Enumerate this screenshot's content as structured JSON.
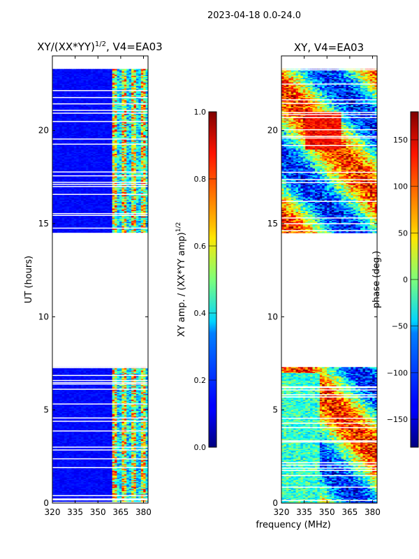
{
  "figure_title": "2023-04-18 0.0-24.0",
  "shared_xlabel": "frequency (MHz)",
  "chart_data": [
    {
      "type": "heatmap",
      "title_main": "XY/(XX*YY)",
      "title_sup": "1/2",
      "title_tail": ", V4=EA03",
      "xlabel": "",
      "ylabel": "UT (hours)",
      "xlim": [
        320,
        383
      ],
      "ylim": [
        0,
        24
      ],
      "xticks": [
        320,
        335,
        350,
        365,
        380
      ],
      "yticks": [
        0,
        5,
        10,
        15,
        20
      ],
      "data_time_ranges": [
        [
          0,
          7.3
        ],
        [
          14.5,
          23.3
        ]
      ],
      "colorbar": {
        "label_main": "XY amp. / (XX*YY amp)",
        "label_sup": "1/2",
        "range": [
          0.0,
          1.0
        ],
        "ticks": [
          "0.0",
          "0.2",
          "0.4",
          "0.6",
          "0.8",
          "1.0"
        ],
        "tick_values": [
          0.0,
          0.2,
          0.4,
          0.6,
          0.8,
          1.0
        ],
        "colormap": "jet"
      }
    },
    {
      "type": "heatmap",
      "title_main": "XY, V4=EA03",
      "title_sup": "",
      "title_tail": "",
      "xlabel": "",
      "ylabel": "",
      "xlim": [
        320,
        383
      ],
      "ylim": [
        0,
        24
      ],
      "xticks": [
        320,
        335,
        350,
        365,
        380
      ],
      "yticks": [
        0,
        5,
        10,
        15,
        20
      ],
      "data_time_ranges": [
        [
          0,
          7.3
        ],
        [
          14.5,
          23.3
        ]
      ],
      "colorbar": {
        "label_main": "phase (deg.)",
        "label_sup": "",
        "range": [
          -180,
          180
        ],
        "ticks": [
          "−150",
          "−100",
          "−50",
          "0",
          "50",
          "100",
          "150"
        ],
        "tick_values": [
          -150,
          -100,
          -50,
          0,
          50,
          100,
          150
        ],
        "colormap": "jet"
      }
    }
  ]
}
